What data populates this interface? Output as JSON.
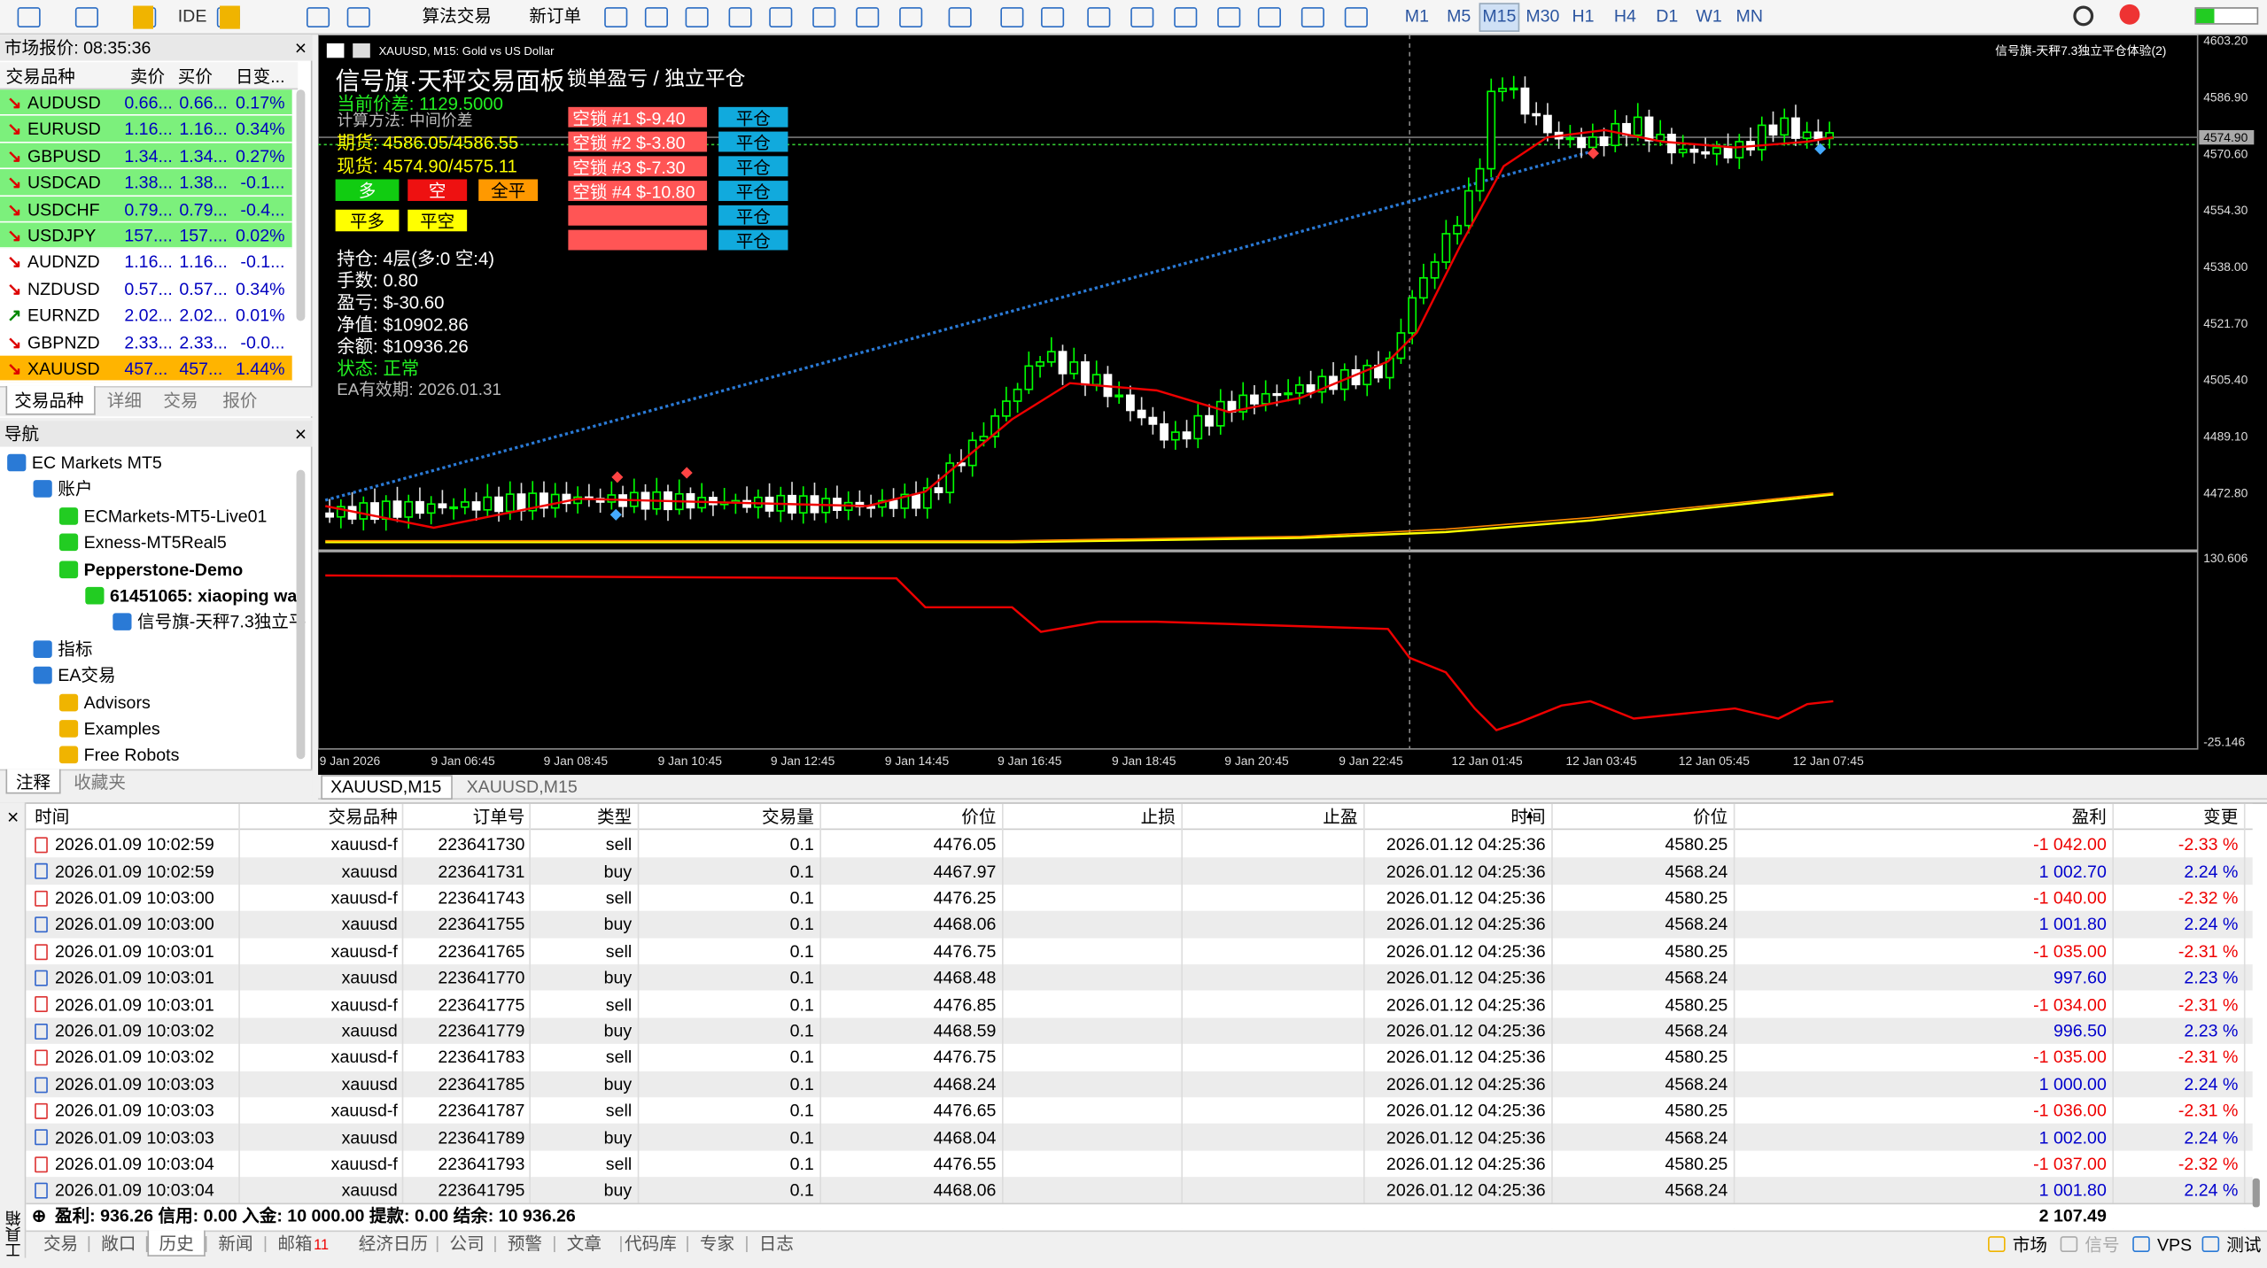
{
  "toolbar": {
    "ide": "IDE",
    "algo": "算法交易",
    "new_order": "新订单",
    "timeframes": [
      "M1",
      "M5",
      "M15",
      "M30",
      "H1",
      "H4",
      "D1",
      "W1",
      "MN"
    ],
    "active_timeframe": 2
  },
  "market_watch": {
    "title": "市场报价: 08:35:36",
    "headers": [
      "交易品种",
      "卖价",
      "买价",
      "日变..."
    ],
    "rows": [
      {
        "symbol": "AUDUSD",
        "bid": "0.66...",
        "ask": "0.66...",
        "change": "0.17%",
        "color": "#7cf07c",
        "arrow": "down"
      },
      {
        "symbol": "EURUSD",
        "bid": "1.16...",
        "ask": "1.16...",
        "change": "0.34%",
        "color": "#7cf07c",
        "arrow": "down"
      },
      {
        "symbol": "GBPUSD",
        "bid": "1.34...",
        "ask": "1.34...",
        "change": "0.27%",
        "color": "#7cf07c",
        "arrow": "down"
      },
      {
        "symbol": "USDCAD",
        "bid": "1.38...",
        "ask": "1.38...",
        "change": "-0.1...",
        "color": "#7cf07c",
        "arrow": "down"
      },
      {
        "symbol": "USDCHF",
        "bid": "0.79...",
        "ask": "0.79...",
        "change": "-0.4...",
        "color": "#7cf07c",
        "arrow": "down"
      },
      {
        "symbol": "USDJPY",
        "bid": "157....",
        "ask": "157....",
        "change": "0.02%",
        "color": "#7cf07c",
        "arrow": "down"
      },
      {
        "symbol": "AUDNZD",
        "bid": "1.16...",
        "ask": "1.16...",
        "change": "-0.1...",
        "color": "#ffffff",
        "arrow": "down"
      },
      {
        "symbol": "NZDUSD",
        "bid": "0.57...",
        "ask": "0.57...",
        "change": "0.34%",
        "color": "#ffffff",
        "arrow": "down"
      },
      {
        "symbol": "EURNZD",
        "bid": "2.02...",
        "ask": "2.02...",
        "change": "0.01%",
        "color": "#ffffff",
        "arrow": "up"
      },
      {
        "symbol": "GBPNZD",
        "bid": "2.33...",
        "ask": "2.33...",
        "change": "-0.0...",
        "color": "#ffffff",
        "arrow": "down"
      },
      {
        "symbol": "XAUUSD",
        "bid": "457...",
        "ask": "457...",
        "change": "1.44%",
        "color": "#ffb400",
        "arrow": "down"
      }
    ],
    "tabs": [
      "交易品种",
      "详细",
      "交易",
      "报价"
    ]
  },
  "navigator": {
    "title": "导航",
    "items": [
      "EC Markets MT5",
      "账户",
      "ECMarkets-MT5-Live01",
      "Exness-MT5Real5",
      "Pepperstone-Demo",
      "61451065: xiaoping wa",
      "信号旗-天秤7.3独立平",
      "指标",
      "EA交易",
      "Advisors",
      "Examples",
      "Free Robots"
    ],
    "tabs": [
      "注释",
      "收藏夹"
    ]
  },
  "chart": {
    "title": "XAUUSD, M15:  Gold vs US Dollar",
    "ea_label": "信号旗-天秤7.3独立平仓体验(2)",
    "panel": {
      "title": "信号旗·天秤交易面板",
      "spread": "当前价差: 1129.5000",
      "method": "计算方法: 中间价差",
      "futures": "期货: 4586.05/4586.55",
      "spot": "现货: 4574.90/4575.11",
      "buttons": [
        "多",
        "空",
        "全平",
        "平多",
        "平空"
      ],
      "stats": [
        "持仓: 4层(多:0 空:4)",
        "手数: 0.80",
        "盈亏: $-30.60",
        "净值: $10902.86",
        "余额: $10936.26"
      ],
      "status": "状态: 正常",
      "expiry": "EA有效期: 2026.01.31"
    },
    "lock": {
      "title": "锁单盈亏 / 独立平仓",
      "rows": [
        "空锁 #1  $-9.40",
        "空锁 #2  $-3.80",
        "空锁 #3  $-7.30",
        "空锁 #4  $-10.80"
      ],
      "close": "平仓"
    },
    "price_ticks": [
      "4603.20",
      "4586.90",
      "4570.60",
      "4554.30",
      "4538.00",
      "4521.70",
      "4505.40",
      "4489.10",
      "4472.80"
    ],
    "current_price": "4574.90",
    "indicator_ticks": [
      "130.606",
      "-25.146"
    ],
    "time_ticks": [
      "9 Jan 2026",
      "9 Jan 06:45",
      "9 Jan 08:45",
      "9 Jan 10:45",
      "9 Jan 12:45",
      "9 Jan 14:45",
      "9 Jan 16:45",
      "9 Jan 18:45",
      "9 Jan 20:45",
      "9 Jan 22:45",
      "12 Jan 01:45",
      "12 Jan 03:45",
      "12 Jan 05:45",
      "12 Jan 07:45"
    ],
    "tabs": [
      "XAUUSD,M15",
      "XAUUSD,M15"
    ]
  },
  "history": {
    "headers": [
      "时间",
      "交易品种",
      "订单号",
      "类型",
      "交易量",
      "价位",
      "止损",
      "止盈",
      "时间",
      "价位",
      "盈利",
      "变更"
    ],
    "rows": [
      [
        "2026.01.09 10:02:59",
        "xauusd-f",
        "223641730",
        "sell",
        "0.1",
        "4476.05",
        "2026.01.12 04:25:36",
        "4580.25",
        "-1 042.00",
        "-2.33 %"
      ],
      [
        "2026.01.09 10:02:59",
        "xauusd",
        "223641731",
        "buy",
        "0.1",
        "4467.97",
        "2026.01.12 04:25:36",
        "4568.24",
        "1 002.70",
        "2.24 %"
      ],
      [
        "2026.01.09 10:03:00",
        "xauusd-f",
        "223641743",
        "sell",
        "0.1",
        "4476.25",
        "2026.01.12 04:25:36",
        "4580.25",
        "-1 040.00",
        "-2.32 %"
      ],
      [
        "2026.01.09 10:03:00",
        "xauusd",
        "223641755",
        "buy",
        "0.1",
        "4468.06",
        "2026.01.12 04:25:36",
        "4568.24",
        "1 001.80",
        "2.24 %"
      ],
      [
        "2026.01.09 10:03:01",
        "xauusd-f",
        "223641765",
        "sell",
        "0.1",
        "4476.75",
        "2026.01.12 04:25:36",
        "4580.25",
        "-1 035.00",
        "-2.31 %"
      ],
      [
        "2026.01.09 10:03:01",
        "xauusd",
        "223641770",
        "buy",
        "0.1",
        "4468.48",
        "2026.01.12 04:25:36",
        "4568.24",
        "997.60",
        "2.23 %"
      ],
      [
        "2026.01.09 10:03:01",
        "xauusd-f",
        "223641775",
        "sell",
        "0.1",
        "4476.85",
        "2026.01.12 04:25:36",
        "4580.25",
        "-1 034.00",
        "-2.31 %"
      ],
      [
        "2026.01.09 10:03:02",
        "xauusd",
        "223641779",
        "buy",
        "0.1",
        "4468.59",
        "2026.01.12 04:25:36",
        "4568.24",
        "996.50",
        "2.23 %"
      ],
      [
        "2026.01.09 10:03:02",
        "xauusd-f",
        "223641783",
        "sell",
        "0.1",
        "4476.75",
        "2026.01.12 04:25:36",
        "4580.25",
        "-1 035.00",
        "-2.31 %"
      ],
      [
        "2026.01.09 10:03:03",
        "xauusd",
        "223641785",
        "buy",
        "0.1",
        "4468.24",
        "2026.01.12 04:25:36",
        "4568.24",
        "1 000.00",
        "2.24 %"
      ],
      [
        "2026.01.09 10:03:03",
        "xauusd-f",
        "223641787",
        "sell",
        "0.1",
        "4476.65",
        "2026.01.12 04:25:36",
        "4580.25",
        "-1 036.00",
        "-2.31 %"
      ],
      [
        "2026.01.09 10:03:03",
        "xauusd",
        "223641789",
        "buy",
        "0.1",
        "4468.04",
        "2026.01.12 04:25:36",
        "4568.24",
        "1 002.00",
        "2.24 %"
      ],
      [
        "2026.01.09 10:03:04",
        "xauusd-f",
        "223641793",
        "sell",
        "0.1",
        "4476.55",
        "2026.01.12 04:25:36",
        "4580.25",
        "-1 037.00",
        "-2.32 %"
      ],
      [
        "2026.01.09 10:03:04",
        "xauusd",
        "223641795",
        "buy",
        "0.1",
        "4468.06",
        "2026.01.12 04:25:36",
        "4568.24",
        "1 001.80",
        "2.24 %"
      ]
    ],
    "summary": "盈利: 936.26  信用: 0.00  入金: 10 000.00  提款: 0.00  结余: 10 936.26",
    "total": "2 107.49"
  },
  "bottom_tabs": [
    "交易",
    "敞口",
    "历史",
    "新闻",
    "邮箱",
    "经济日历",
    "公司",
    "预警",
    "文章",
    "代码库",
    "专家",
    "日志"
  ],
  "mail_count": "11",
  "active_tab": 2,
  "toolbox": "工具箱",
  "status": [
    "市场",
    "信号",
    "VPS",
    "测试"
  ]
}
